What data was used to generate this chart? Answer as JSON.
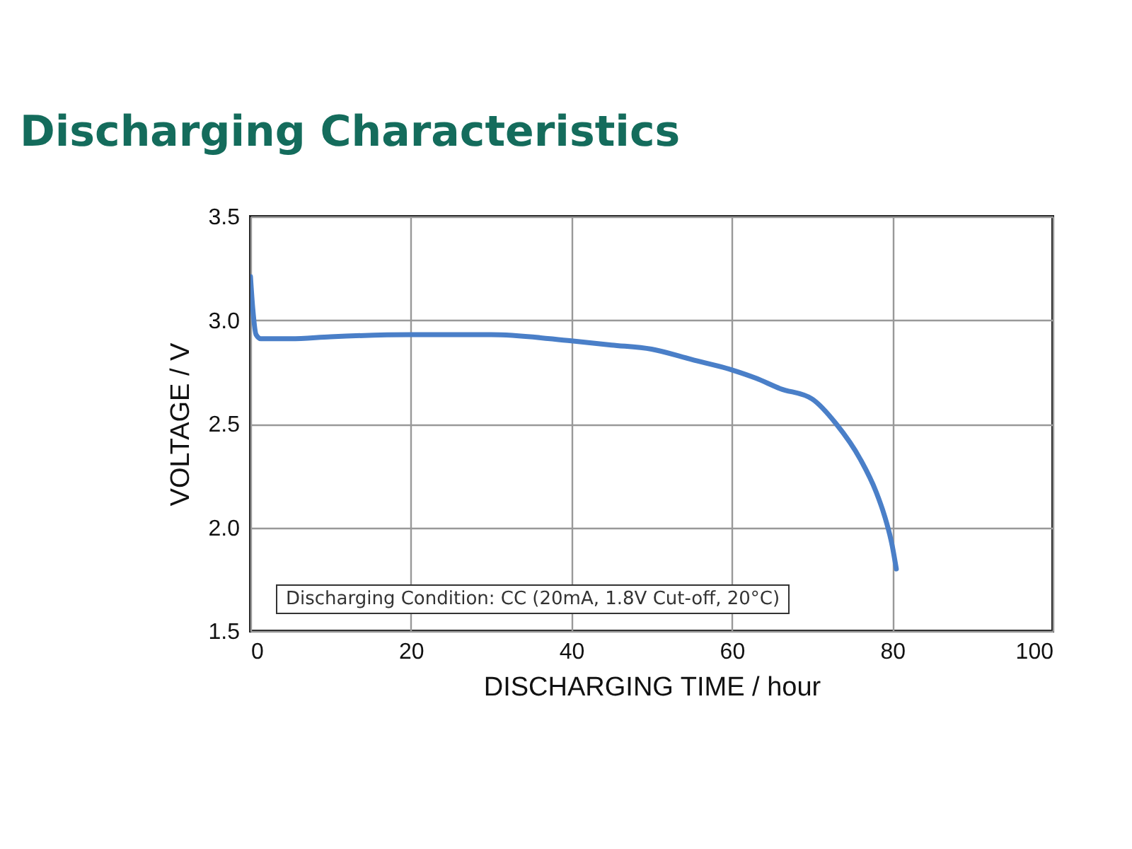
{
  "chart_data": {
    "type": "line",
    "title": "Discharging Characteristics",
    "xlabel": "DISCHARGING TIME / hour",
    "ylabel": "VOLTAGE / V",
    "annotations": [
      "Discharging Condition: CC (20mA, 1.8V Cut-off, 20°C)"
    ],
    "series": [
      {
        "color": "#4a7fc8",
        "x": [
          0,
          0.3,
          0.7,
          1.3,
          5,
          10,
          20,
          30,
          40,
          45,
          50,
          55,
          60,
          63,
          66,
          70,
          73,
          76,
          78,
          79,
          80,
          80.5
        ],
        "values": [
          3.21,
          3.05,
          2.93,
          2.91,
          2.91,
          2.92,
          2.93,
          2.93,
          2.9,
          2.88,
          2.86,
          2.81,
          2.76,
          2.72,
          2.67,
          2.62,
          2.5,
          2.33,
          2.17,
          2.06,
          1.91,
          1.8
        ]
      }
    ],
    "xlim": [
      0,
      100
    ],
    "xticks": [
      0,
      20,
      40,
      60,
      80,
      100
    ],
    "ylim": [
      1.5,
      3.5
    ],
    "yticks": [
      {
        "value": 1.5,
        "label": "1.5"
      },
      {
        "value": 2,
        "label": "2.0"
      },
      {
        "value": 2.5,
        "label": "2.5"
      },
      {
        "value": 3,
        "label": "3.0"
      },
      {
        "value": 3.5,
        "label": "3.5"
      }
    ],
    "grid": true,
    "marker": "none",
    "line_style": "solid"
  }
}
